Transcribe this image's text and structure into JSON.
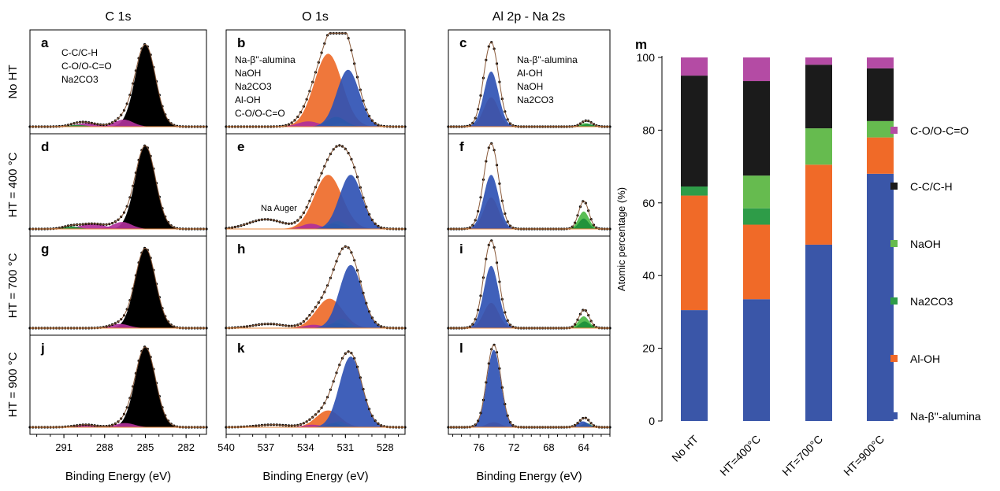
{
  "columns": [
    {
      "title": "C 1s",
      "xlabel": "Binding Energy (eV)",
      "ticks": [
        "291",
        "288",
        "285",
        "282"
      ],
      "range": [
        293.5,
        280.5
      ]
    },
    {
      "title": "O 1s",
      "xlabel": "Binding Energy (eV)",
      "ticks": [
        "540",
        "537",
        "534",
        "531",
        "528"
      ],
      "range": [
        540,
        526.5
      ]
    },
    {
      "title": "Al 2p  -  Na 2s",
      "xlabel": "Binding Energy (eV)",
      "ticks": [
        "76",
        "72",
        "68",
        "64"
      ],
      "range": [
        79.5,
        61
      ]
    }
  ],
  "rows": [
    "No HT",
    "HT = 400 °C",
    "HT = 700 °C",
    "HT = 900 °C"
  ],
  "panel_letters": [
    [
      "a",
      "b",
      "c"
    ],
    [
      "d",
      "e",
      "f"
    ],
    [
      "g",
      "h",
      "i"
    ],
    [
      "j",
      "k",
      "l"
    ]
  ],
  "legend_c1s": [
    {
      "text": "C-C/C-H",
      "color": "#000000"
    },
    {
      "text": "C-O/O-C=O",
      "color": "#b0309a"
    },
    {
      "text": "Na2CO3",
      "color": "#21a64a"
    }
  ],
  "legend_o1s": [
    {
      "text": "Na-β''-alumina",
      "color": "#3053b4"
    },
    {
      "text": "NaOH",
      "color": "#4cb847"
    },
    {
      "text": "Na2CO3",
      "color": "#1d8f3a"
    },
    {
      "text": "Al-OH",
      "color": "#ee6b2a"
    },
    {
      "text": "C-O/O-C=O",
      "color": "#b0309a"
    }
  ],
  "legend_al2p": [
    {
      "text": "Na-β''-alumina",
      "color": "#3053b4"
    },
    {
      "text": "Al-OH",
      "color": "#ee6b2a"
    },
    {
      "text": "NaOH",
      "color": "#4cb847"
    },
    {
      "text": "Na2CO3",
      "color": "#1d8f3a"
    }
  ],
  "annotation": "Na Auger",
  "chart_data": {
    "type": "bar",
    "stacked": true,
    "panel_letter": "m",
    "categories": [
      "No HT",
      "HT=400°C",
      "HT=700°C",
      "HT=900°C"
    ],
    "ylabel": "Atomic percentage (%)",
    "ylim": [
      0,
      100
    ],
    "yticks": [
      "0",
      "20",
      "40",
      "60",
      "80",
      "100"
    ],
    "legend_placement": "right",
    "series": [
      {
        "name": "Na-β''-alumina",
        "color": "#3a56a8",
        "values": [
          30.5,
          33.5,
          48.5,
          68
        ]
      },
      {
        "name": "Al-OH",
        "color": "#f06a28",
        "values": [
          31.5,
          20.5,
          22,
          10
        ]
      },
      {
        "name": "Na2CO3",
        "color": "#2e9c48",
        "values": [
          2.5,
          4.5,
          0,
          0
        ]
      },
      {
        "name": "NaOH",
        "color": "#66bb4f",
        "values": [
          0,
          9,
          10,
          4.5
        ]
      },
      {
        "name": "C-C/C-H",
        "color": "#1b1b1b",
        "values": [
          30.5,
          26,
          17.5,
          14.5
        ]
      },
      {
        "name": "C-O/O-C=O",
        "color": "#b44ba4",
        "values": [
          5,
          6.5,
          2,
          3
        ]
      }
    ],
    "legend_order": [
      "C-O/O-C=O",
      "C-C/C-H",
      "NaOH",
      "Na2CO3",
      "Al-OH",
      "Na-β''-alumina"
    ]
  }
}
